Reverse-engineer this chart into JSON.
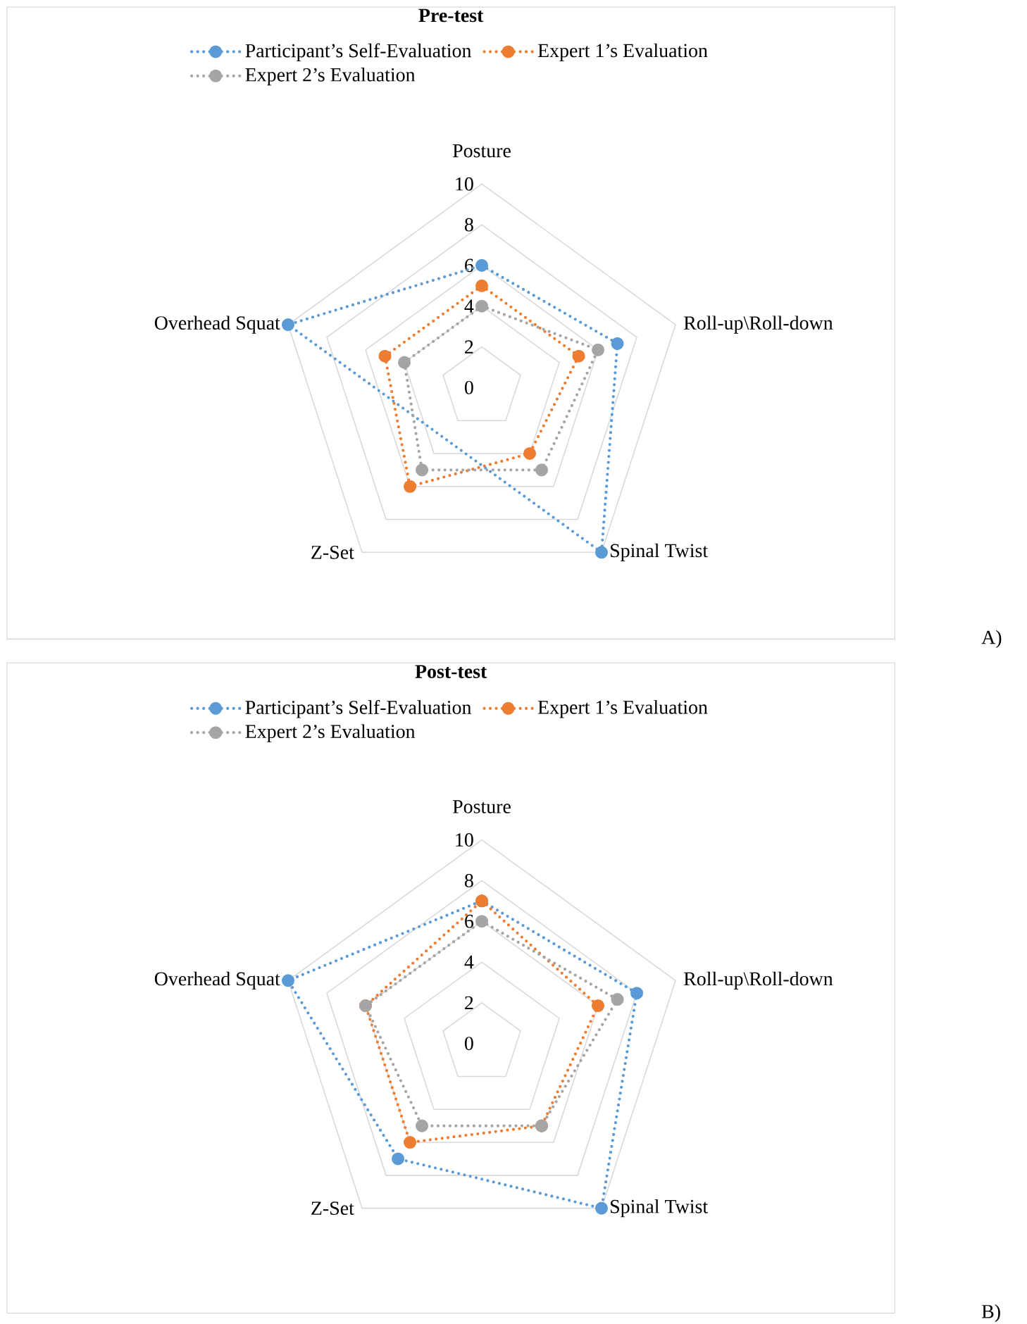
{
  "chart_data": [
    {
      "type": "radar",
      "title": "Pre-test",
      "categories": [
        "Posture",
        "Roll-up\\Roll-down",
        "Spinal Twist",
        "Z-Set",
        "Overhead Squat"
      ],
      "series": [
        {
          "name": "Participant’s Self-Evaluation",
          "color": "#5b9bd5",
          "values": [
            6,
            7,
            10,
            null,
            10
          ]
        },
        {
          "name": "Expert 1’s Evaluation",
          "color": "#ed7d31",
          "values": [
            5,
            5,
            4,
            6,
            5
          ]
        },
        {
          "name": "Expert 2’s Evaluation",
          "color": "#a5a5a5",
          "values": [
            4,
            6,
            5,
            5,
            4
          ]
        }
      ],
      "ylim": [
        0,
        10
      ],
      "yticks": [
        0,
        2,
        4,
        6,
        8,
        10
      ],
      "grid": true,
      "legend": "top",
      "marker": "circle",
      "line_style": "dotted",
      "annotations": [
        "A)"
      ]
    },
    {
      "type": "radar",
      "title": "Post-test",
      "categories": [
        "Posture",
        "Roll-up\\Roll-down",
        "Spinal Twist",
        "Z-Set",
        "Overhead Squat"
      ],
      "series": [
        {
          "name": "Participant’s Self-Evaluation",
          "color": "#5b9bd5",
          "values": [
            7,
            8,
            10,
            7,
            10
          ]
        },
        {
          "name": "Expert 1’s Evaluation",
          "color": "#ed7d31",
          "values": [
            7,
            6,
            5,
            6,
            6
          ]
        },
        {
          "name": "Expert 2’s Evaluation",
          "color": "#a5a5a5",
          "values": [
            6,
            7,
            5,
            5,
            6
          ]
        }
      ],
      "ylim": [
        0,
        10
      ],
      "yticks": [
        0,
        2,
        4,
        6,
        8,
        10
      ],
      "grid": true,
      "legend": "top",
      "marker": "circle",
      "line_style": "dotted",
      "annotations": [
        "B)"
      ]
    }
  ]
}
